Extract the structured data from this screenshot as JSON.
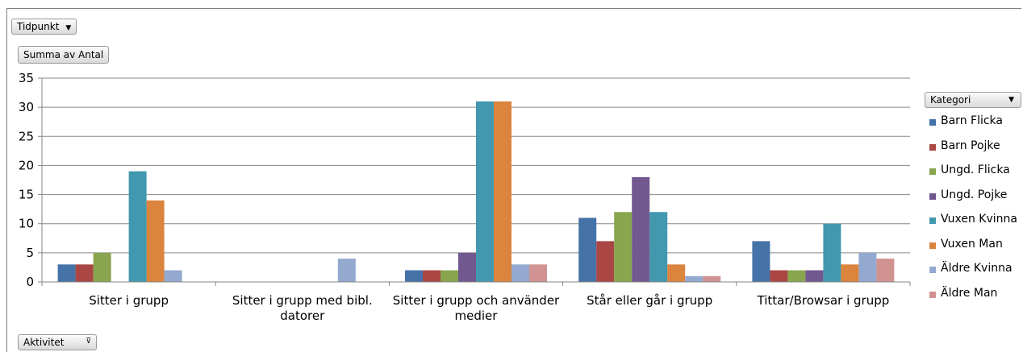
{
  "controls": {
    "time_filter": "Tidpunkt",
    "value_field": "Summa av Antal",
    "legend_filter": "Kategori",
    "axis_filter": "Aktivitet"
  },
  "chart_data": {
    "type": "bar",
    "title": "",
    "xlabel": "",
    "ylabel": "",
    "ylim": [
      0,
      35
    ],
    "yticks": [
      0,
      5,
      10,
      15,
      20,
      25,
      30,
      35
    ],
    "grid": true,
    "legend_position": "right",
    "categories": [
      "Sitter i grupp",
      "Sitter i grupp med bibl. datorer",
      "Sitter i grupp och använder medier",
      "Står eller går i grupp",
      "Tittar/Browsar i grupp"
    ],
    "series": [
      {
        "name": "Barn Flicka",
        "color": "#4572a7",
        "values": [
          3,
          0,
          2,
          11,
          7
        ]
      },
      {
        "name": "Barn Pojke",
        "color": "#aa4643",
        "values": [
          3,
          0,
          2,
          7,
          2
        ]
      },
      {
        "name": "Ungd. Flicka",
        "color": "#89a54e",
        "values": [
          5,
          0,
          2,
          12,
          2
        ]
      },
      {
        "name": "Ungd. Pojke",
        "color": "#71588f",
        "values": [
          0,
          0,
          5,
          18,
          2
        ]
      },
      {
        "name": "Vuxen Kvinna",
        "color": "#4198af",
        "values": [
          19,
          0,
          31,
          12,
          10
        ]
      },
      {
        "name": "Vuxen Man",
        "color": "#db843d",
        "values": [
          14,
          0,
          31,
          3,
          3
        ]
      },
      {
        "name": "Äldre Kvinna",
        "color": "#93a9cf",
        "values": [
          2,
          4,
          3,
          1,
          5
        ]
      },
      {
        "name": "Äldre Man",
        "color": "#d19392",
        "values": [
          0,
          0,
          3,
          1,
          4
        ]
      }
    ]
  }
}
